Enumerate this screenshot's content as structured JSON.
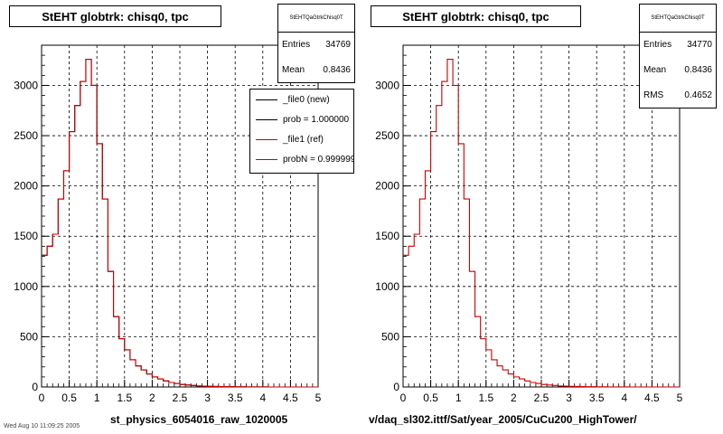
{
  "footer_text": "Wed Aug 10 11:09:25 2005",
  "chart_data": [
    {
      "type": "histogram",
      "title": "StEHT globtrk: chisq0, tpc",
      "xlabel": "st_physics_6054016_raw_1020005",
      "xlim": [
        0,
        5
      ],
      "ylim": [
        0,
        3400
      ],
      "xticks": [
        "0",
        "0.5",
        "1",
        "1.5",
        "2",
        "2.5",
        "3",
        "3.5",
        "4",
        "4.5",
        "5"
      ],
      "yticks": [
        "0",
        "500",
        "1000",
        "1500",
        "2000",
        "2500",
        "3000"
      ],
      "grid": true,
      "bin_width": 0.1,
      "series": [
        {
          "name": "_file0 (new)",
          "color": "#000000",
          "values": [
            1310,
            1400,
            1520,
            1870,
            2150,
            2540,
            2800,
            3040,
            3260,
            3000,
            2420,
            1870,
            1150,
            700,
            480,
            370,
            270,
            210,
            170,
            130,
            100,
            80,
            60,
            45,
            35,
            25,
            20,
            15,
            10,
            8,
            6,
            5,
            4,
            3,
            3,
            2,
            2,
            1,
            1,
            1,
            1,
            0,
            0,
            0,
            0,
            0,
            0,
            0,
            0,
            0
          ]
        },
        {
          "name": "_file1 (ref)",
          "color": "#cc0000",
          "values": [
            1310,
            1400,
            1520,
            1870,
            2150,
            2540,
            2800,
            3040,
            3260,
            3000,
            2420,
            1870,
            1150,
            700,
            480,
            370,
            270,
            210,
            170,
            130,
            100,
            80,
            60,
            45,
            35,
            25,
            20,
            15,
            10,
            8,
            6,
            5,
            4,
            3,
            3,
            2,
            2,
            1,
            1,
            1,
            1,
            0,
            0,
            0,
            0,
            0,
            0,
            0,
            0,
            0
          ]
        }
      ],
      "stats": {
        "name": "StEHTQaGtrkChisq0T",
        "entries_label": "Entries",
        "entries": "34769",
        "mean_label": "Mean",
        "mean": "0.8436"
      },
      "legend": [
        {
          "label": "_file0 (new)",
          "color": "#000000"
        },
        {
          "label": "prob = 1.000000",
          "color": "#000000"
        },
        {
          "label": "_file1 (ref)",
          "color": "#cc0000"
        },
        {
          "label": "probN = 0.999999",
          "color": "#cc0000"
        }
      ]
    },
    {
      "type": "histogram",
      "title": "StEHT globtrk: chisq0, tpc",
      "xlabel": "v/daq_sl302.ittf/Sat/year_2005/CuCu200_HighTower/",
      "xlim": [
        0,
        5
      ],
      "ylim": [
        0,
        3400
      ],
      "xticks": [
        "0",
        "0.5",
        "1",
        "1.5",
        "2",
        "2.5",
        "3",
        "3.5",
        "4",
        "4.5",
        "5"
      ],
      "yticks": [
        "0",
        "500",
        "1000",
        "1500",
        "2000",
        "2500",
        "3000"
      ],
      "grid": true,
      "bin_width": 0.1,
      "series": [
        {
          "color": "#cc0000",
          "values": [
            1310,
            1400,
            1520,
            1870,
            2150,
            2540,
            2800,
            3040,
            3260,
            3000,
            2420,
            1870,
            1150,
            700,
            480,
            370,
            270,
            210,
            170,
            130,
            100,
            80,
            60,
            45,
            35,
            25,
            20,
            15,
            10,
            8,
            6,
            5,
            4,
            3,
            3,
            2,
            2,
            1,
            1,
            1,
            1,
            0,
            0,
            0,
            0,
            0,
            0,
            0,
            0,
            0
          ]
        }
      ],
      "stats": {
        "name": "StEHTQaGtrkChisq0T",
        "entries_label": "Entries",
        "entries": "34770",
        "mean_label": "Mean",
        "mean": "0.8436",
        "rms_label": "RMS",
        "rms": "0.4652"
      }
    }
  ]
}
